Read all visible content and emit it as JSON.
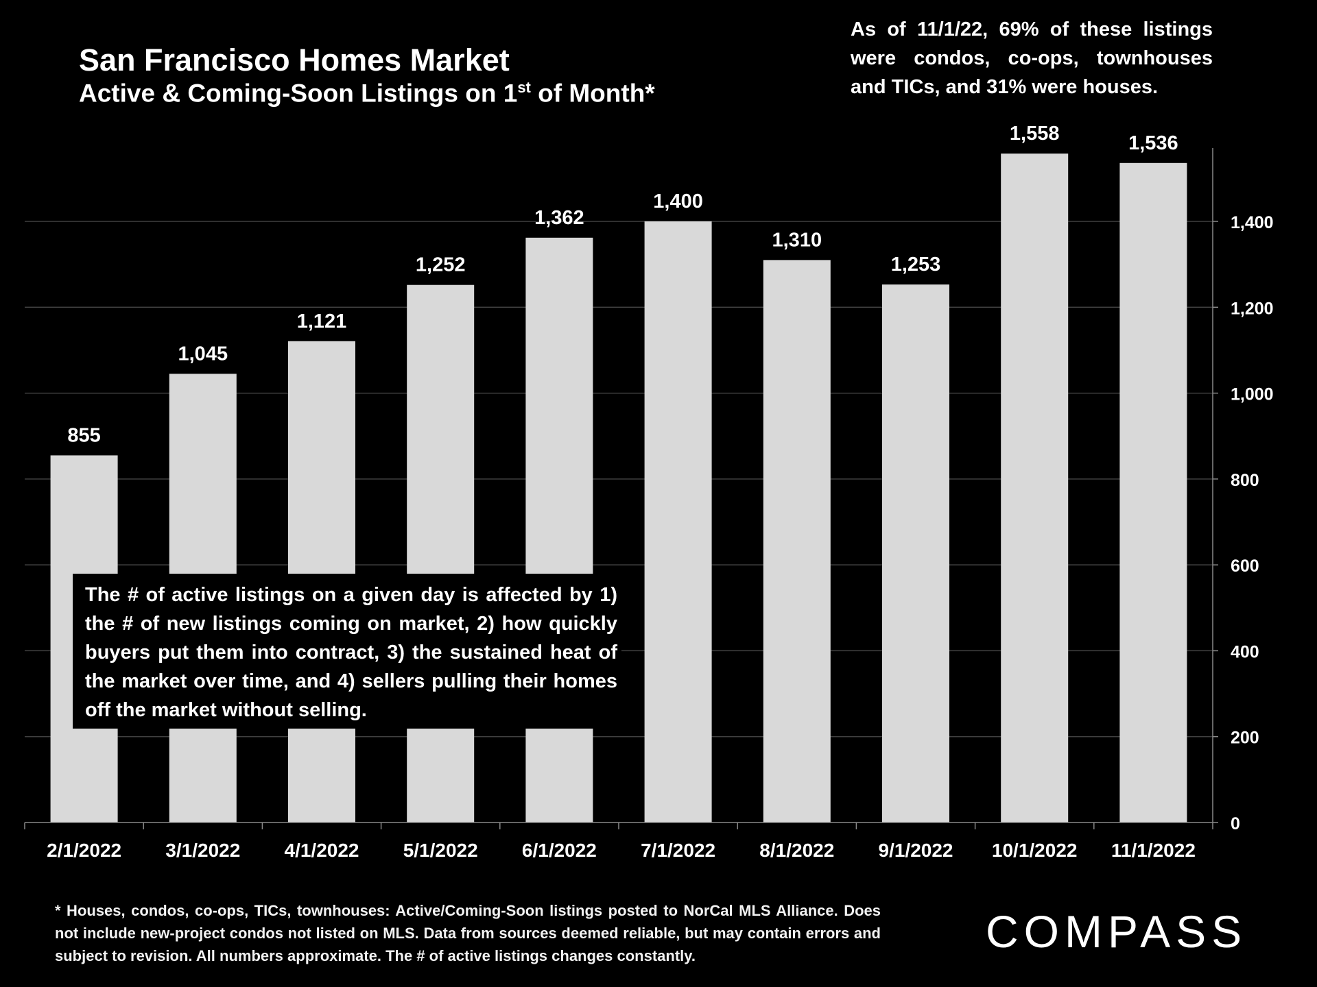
{
  "header": {
    "title": "San Francisco Homes Market",
    "subtitle_main": "Active & Coming-Soon Listings on 1",
    "subtitle_sup": "st",
    "subtitle_tail": " of Month*"
  },
  "note_top": "As of 11/1/22, 69% of these listings were condos, co-ops, townhouses and TICs, and 31% were houses.",
  "callout": "The # of active listings on a given day is affected by 1) the # of new listings coming on market, 2) how quickly buyers put them into contract, 3) the sustained heat of the market over time, and 4) sellers pulling their homes off the market without selling.",
  "footnote": "* Houses, condos, co-ops, TICs, townhouses: Active/Coming-Soon listings posted to NorCal MLS Alliance. Does not include new-project condos not listed on MLS. Data from sources deemed reliable, but may contain errors and subject to revision. All numbers approximate. The # of active listings changes constantly.",
  "logo": {
    "text": "COMPASS"
  },
  "colors": {
    "background": "#000000",
    "bar": "#d9d9d9",
    "text": "#ffffff",
    "grid": "#404040"
  },
  "chart_data": {
    "type": "bar",
    "title": "San Francisco Homes Market",
    "categories": [
      "2/1/2022",
      "3/1/2022",
      "4/1/2022",
      "5/1/2022",
      "6/1/2022",
      "7/1/2022",
      "8/1/2022",
      "9/1/2022",
      "10/1/2022",
      "11/1/2022"
    ],
    "values": [
      855,
      1045,
      1121,
      1252,
      1362,
      1400,
      1310,
      1253,
      1558,
      1536
    ],
    "value_labels": [
      "855",
      "1,045",
      "1,121",
      "1,252",
      "1,362",
      "1,400",
      "1,310",
      "1,253",
      "1,558",
      "1,536"
    ],
    "y_ticks": [
      0,
      200,
      400,
      600,
      800,
      1000,
      1200,
      1400
    ],
    "y_tick_labels": [
      "0",
      "200",
      "400",
      "600",
      "800",
      "1,000",
      "1,200",
      "1,400"
    ],
    "ylim": [
      0,
      1400
    ],
    "y_axis_side": "right",
    "grid": true,
    "legend": "none"
  }
}
